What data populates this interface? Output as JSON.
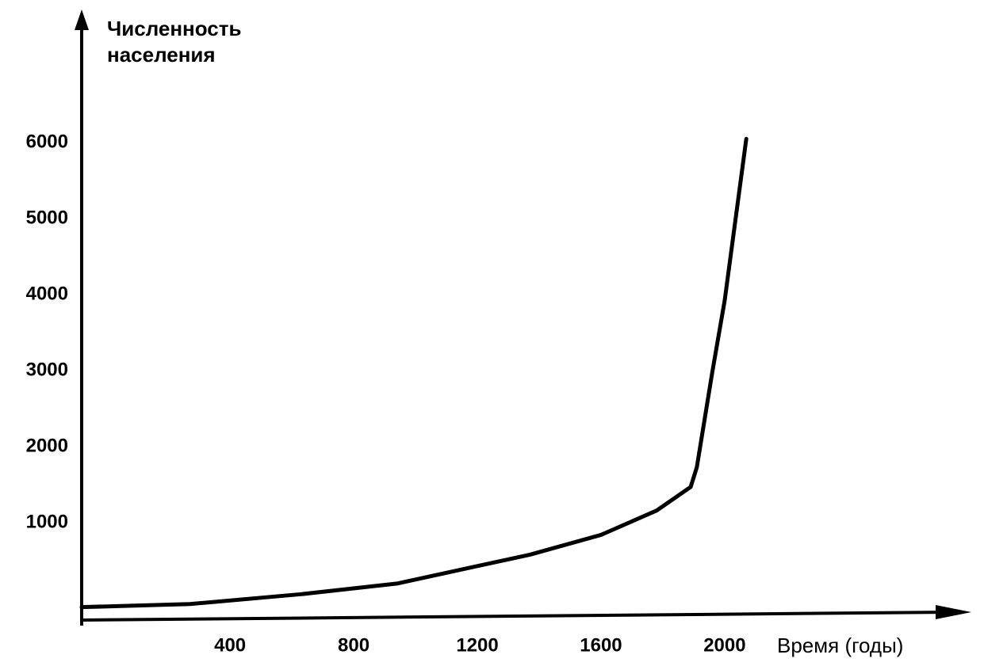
{
  "chart_data": {
    "type": "line",
    "y_label": "Численность населения",
    "x_label": "Время (годы)",
    "x": [
      -80,
      270,
      630,
      940,
      1200,
      1370,
      1600,
      1780,
      1890,
      1910,
      1960,
      2000,
      2070
    ],
    "series": [
      {
        "color": "#000000",
        "values": [
          -110,
          -70,
          60,
          200,
          430,
          580,
          840,
          1160,
          1470,
          1730,
          2980,
          3920,
          6050
        ]
      }
    ],
    "xlim": [
      -80,
      2780
    ],
    "ylim": [
      -270,
      7720
    ],
    "xticks": [
      400,
      800,
      1200,
      1600,
      2000
    ],
    "yticks": [
      1000,
      2000,
      3000,
      4000,
      5000,
      6000
    ]
  }
}
